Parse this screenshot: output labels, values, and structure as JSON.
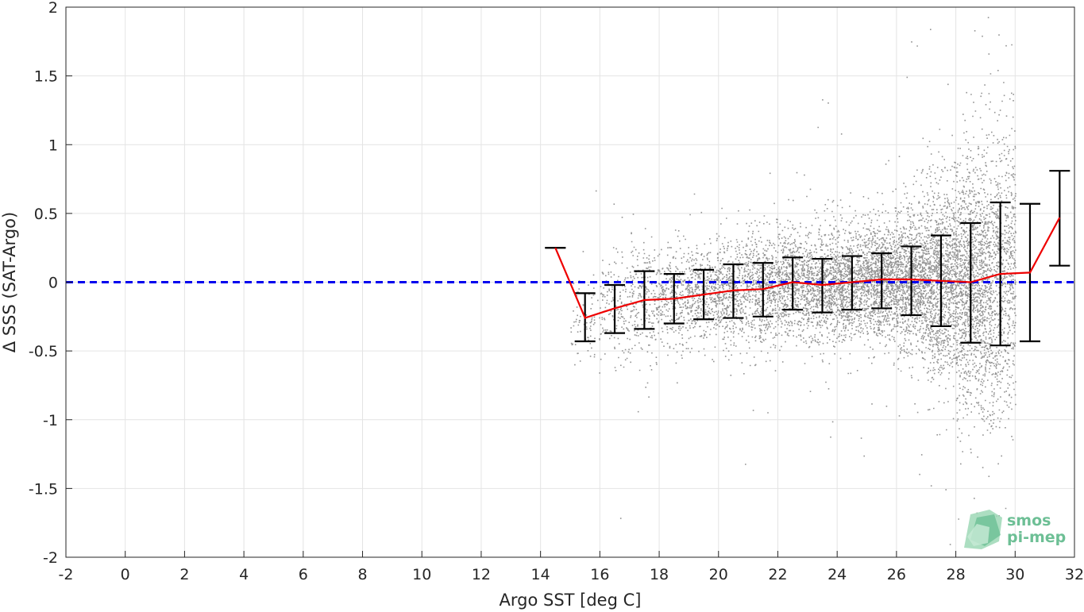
{
  "chart_data": {
    "type": "scatter",
    "xlabel": "Argo SST [deg C]",
    "ylabel": "Δ SSS (SAT-Argo)",
    "xlim": [
      -2,
      32
    ],
    "ylim": [
      -2,
      2
    ],
    "xticks": [
      -2,
      0,
      2,
      4,
      6,
      8,
      10,
      12,
      14,
      16,
      18,
      20,
      22,
      24,
      26,
      28,
      30,
      32
    ],
    "yticks": [
      2,
      1.5,
      1,
      0.5,
      0,
      -0.5,
      -1,
      -1.5,
      -2
    ],
    "xtick_labels": [
      "-2",
      "0",
      "2",
      "4",
      "6",
      "8",
      "10",
      "12",
      "14",
      "16",
      "18",
      "20",
      "22",
      "24",
      "26",
      "28",
      "30",
      "32"
    ],
    "ytick_labels": [
      "2",
      "1.5",
      "1",
      "0.5",
      "0",
      "-0.5",
      "-1",
      "-1.5",
      "-2"
    ],
    "grid": true,
    "reference_line": {
      "y": 0,
      "style": "dashed",
      "color": "#0000ee"
    },
    "binned_mean": {
      "color": "#ee0000",
      "x": [
        14.5,
        15.5,
        16.5,
        17.5,
        18.5,
        19.5,
        20.5,
        21.5,
        22.5,
        23.5,
        24.5,
        25.5,
        26.5,
        27.5,
        28.5,
        29.5,
        30.5,
        31.5
      ],
      "y": [
        0.25,
        -0.26,
        -0.19,
        -0.13,
        -0.12,
        -0.09,
        -0.06,
        -0.05,
        0.0,
        -0.02,
        0.0,
        0.02,
        0.02,
        0.01,
        0.0,
        0.06,
        0.07,
        0.47
      ]
    },
    "error_bars": {
      "color": "#000000",
      "x": [
        14.5,
        15.5,
        16.5,
        17.5,
        18.5,
        19.5,
        20.5,
        21.5,
        22.5,
        23.5,
        24.5,
        25.5,
        26.5,
        27.5,
        28.5,
        29.5,
        30.5,
        31.5
      ],
      "lower": [
        0.25,
        -0.43,
        -0.37,
        -0.34,
        -0.3,
        -0.27,
        -0.26,
        -0.25,
        -0.2,
        -0.22,
        -0.2,
        -0.19,
        -0.24,
        -0.32,
        -0.44,
        -0.46,
        -0.43,
        0.12
      ],
      "upper": [
        0.25,
        -0.08,
        -0.02,
        0.08,
        0.06,
        0.09,
        0.13,
        0.14,
        0.18,
        0.17,
        0.19,
        0.21,
        0.26,
        0.34,
        0.43,
        0.58,
        0.57,
        0.81
      ]
    },
    "scatter_color": "#808080"
  },
  "logo": {
    "line1": "smos",
    "line2": "pi-mep",
    "color": "#6dbf95"
  }
}
